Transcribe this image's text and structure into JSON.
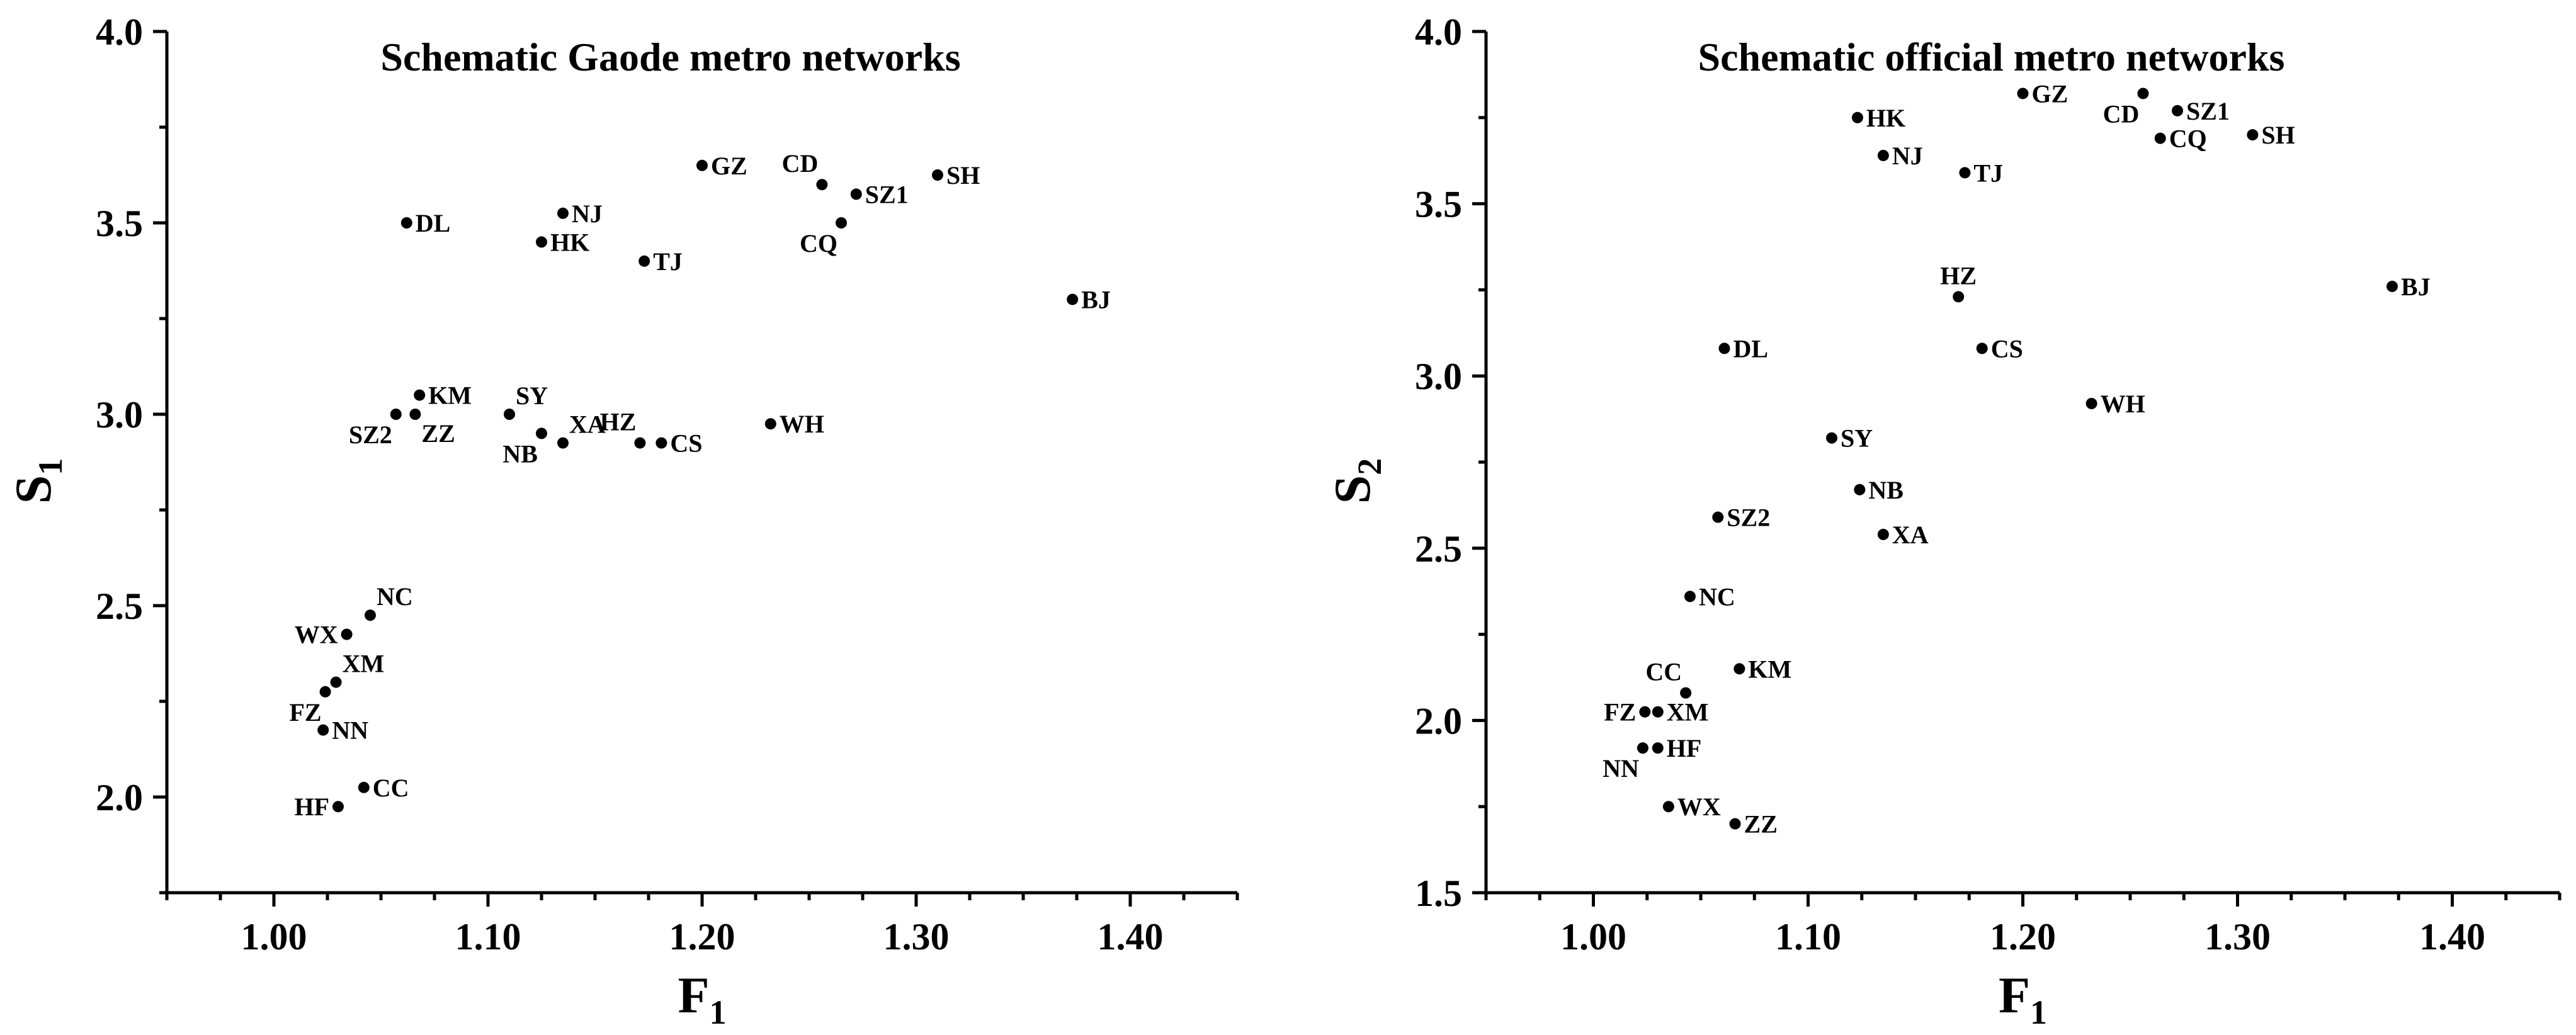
{
  "chart_data": [
    {
      "type": "scatter",
      "title": "Schematic Gaode metro networks",
      "xlabel": "F",
      "xlabel_sub": "1",
      "ylabel": "S",
      "ylabel_sub": "1",
      "xlim": [
        0.95,
        1.45
      ],
      "ylim": [
        1.75,
        4.0
      ],
      "xticks": [
        1.0,
        1.1,
        1.2,
        1.3,
        1.4
      ],
      "xtick_labels": [
        "1.00",
        "1.10",
        "1.20",
        "1.30",
        "1.40"
      ],
      "yticks": [
        2.0,
        2.5,
        3.0,
        3.5,
        4.0
      ],
      "ytick_labels": [
        "2.0",
        "2.5",
        "3.0",
        "3.5",
        "4.0"
      ],
      "grid": false,
      "points": [
        {
          "label": "GZ",
          "x": 1.2,
          "y": 3.65,
          "pos": "right"
        },
        {
          "label": "CD",
          "x": 1.256,
          "y": 3.6,
          "pos": "above-left"
        },
        {
          "label": "SH",
          "x": 1.31,
          "y": 3.625,
          "pos": "right"
        },
        {
          "label": "SZ1",
          "x": 1.272,
          "y": 3.575,
          "pos": "right"
        },
        {
          "label": "CQ",
          "x": 1.265,
          "y": 3.5,
          "pos": "below-left"
        },
        {
          "label": "DL",
          "x": 1.062,
          "y": 3.5,
          "pos": "right"
        },
        {
          "label": "NJ",
          "x": 1.135,
          "y": 3.525,
          "pos": "right"
        },
        {
          "label": "HK",
          "x": 1.125,
          "y": 3.45,
          "pos": "right"
        },
        {
          "label": "TJ",
          "x": 1.173,
          "y": 3.4,
          "pos": "right"
        },
        {
          "label": "BJ",
          "x": 1.373,
          "y": 3.3,
          "pos": "right"
        },
        {
          "label": "KM",
          "x": 1.068,
          "y": 3.05,
          "pos": "right"
        },
        {
          "label": "SZ2",
          "x": 1.057,
          "y": 3.0,
          "pos": "below-left"
        },
        {
          "label": "ZZ",
          "x": 1.066,
          "y": 3.0,
          "pos": "below-right"
        },
        {
          "label": "SY",
          "x": 1.11,
          "y": 3.0,
          "pos": "above-right"
        },
        {
          "label": "NB",
          "x": 1.125,
          "y": 2.95,
          "pos": "below-left"
        },
        {
          "label": "XA",
          "x": 1.135,
          "y": 2.925,
          "pos": "above-right"
        },
        {
          "label": "HZ",
          "x": 1.171,
          "y": 2.925,
          "pos": "above-left"
        },
        {
          "label": "CS",
          "x": 1.181,
          "y": 2.925,
          "pos": "right"
        },
        {
          "label": "WH",
          "x": 1.232,
          "y": 2.975,
          "pos": "right"
        },
        {
          "label": "NC",
          "x": 1.045,
          "y": 2.475,
          "pos": "above-right"
        },
        {
          "label": "WX",
          "x": 1.034,
          "y": 2.425,
          "pos": "left"
        },
        {
          "label": "XM",
          "x": 1.029,
          "y": 2.3,
          "pos": "above-right"
        },
        {
          "label": "FZ",
          "x": 1.024,
          "y": 2.275,
          "pos": "below-left"
        },
        {
          "label": "NN",
          "x": 1.023,
          "y": 2.175,
          "pos": "right"
        },
        {
          "label": "CC",
          "x": 1.042,
          "y": 2.025,
          "pos": "right"
        },
        {
          "label": "HF",
          "x": 1.03,
          "y": 1.975,
          "pos": "left"
        }
      ]
    },
    {
      "type": "scatter",
      "title": "Schematic official metro networks",
      "xlabel": "F",
      "xlabel_sub": "1",
      "ylabel": "S",
      "ylabel_sub": "2",
      "xlim": [
        0.95,
        1.45
      ],
      "ylim": [
        1.5,
        4.0
      ],
      "xticks": [
        1.0,
        1.1,
        1.2,
        1.3,
        1.4
      ],
      "xtick_labels": [
        "1.00",
        "1.10",
        "1.20",
        "1.30",
        "1.40"
      ],
      "yticks": [
        1.5,
        2.0,
        2.5,
        3.0,
        3.5,
        4.0
      ],
      "ytick_labels": [
        "1.5",
        "2.0",
        "2.5",
        "3.0",
        "3.5",
        "4.0"
      ],
      "grid": false,
      "points": [
        {
          "label": "GZ",
          "x": 1.2,
          "y": 3.82,
          "pos": "right"
        },
        {
          "label": "CD",
          "x": 1.256,
          "y": 3.82,
          "pos": "below-left"
        },
        {
          "label": "SZ1",
          "x": 1.272,
          "y": 3.77,
          "pos": "right"
        },
        {
          "label": "SH",
          "x": 1.307,
          "y": 3.7,
          "pos": "right"
        },
        {
          "label": "CQ",
          "x": 1.264,
          "y": 3.69,
          "pos": "right"
        },
        {
          "label": "HK",
          "x": 1.123,
          "y": 3.75,
          "pos": "right"
        },
        {
          "label": "NJ",
          "x": 1.135,
          "y": 3.64,
          "pos": "right"
        },
        {
          "label": "TJ",
          "x": 1.173,
          "y": 3.59,
          "pos": "right"
        },
        {
          "label": "BJ",
          "x": 1.372,
          "y": 3.26,
          "pos": "right"
        },
        {
          "label": "HZ",
          "x": 1.17,
          "y": 3.23,
          "pos": "above"
        },
        {
          "label": "DL",
          "x": 1.061,
          "y": 3.08,
          "pos": "right"
        },
        {
          "label": "CS",
          "x": 1.181,
          "y": 3.08,
          "pos": "right"
        },
        {
          "label": "WH",
          "x": 1.232,
          "y": 2.92,
          "pos": "right"
        },
        {
          "label": "SY",
          "x": 1.111,
          "y": 2.82,
          "pos": "right"
        },
        {
          "label": "NB",
          "x": 1.124,
          "y": 2.67,
          "pos": "right"
        },
        {
          "label": "SZ2",
          "x": 1.058,
          "y": 2.59,
          "pos": "right"
        },
        {
          "label": "XA",
          "x": 1.135,
          "y": 2.54,
          "pos": "right"
        },
        {
          "label": "NC",
          "x": 1.045,
          "y": 2.36,
          "pos": "right"
        },
        {
          "label": "KM",
          "x": 1.068,
          "y": 2.15,
          "pos": "right"
        },
        {
          "label": "CC",
          "x": 1.043,
          "y": 2.08,
          "pos": "above-left"
        },
        {
          "label": "FZ",
          "x": 1.024,
          "y": 2.025,
          "pos": "left"
        },
        {
          "label": "XM",
          "x": 1.03,
          "y": 2.025,
          "pos": "right"
        },
        {
          "label": "NN",
          "x": 1.023,
          "y": 1.92,
          "pos": "below-left"
        },
        {
          "label": "HF",
          "x": 1.03,
          "y": 1.92,
          "pos": "right"
        },
        {
          "label": "WX",
          "x": 1.035,
          "y": 1.75,
          "pos": "right"
        },
        {
          "label": "ZZ",
          "x": 1.066,
          "y": 1.7,
          "pos": "right"
        }
      ]
    }
  ]
}
